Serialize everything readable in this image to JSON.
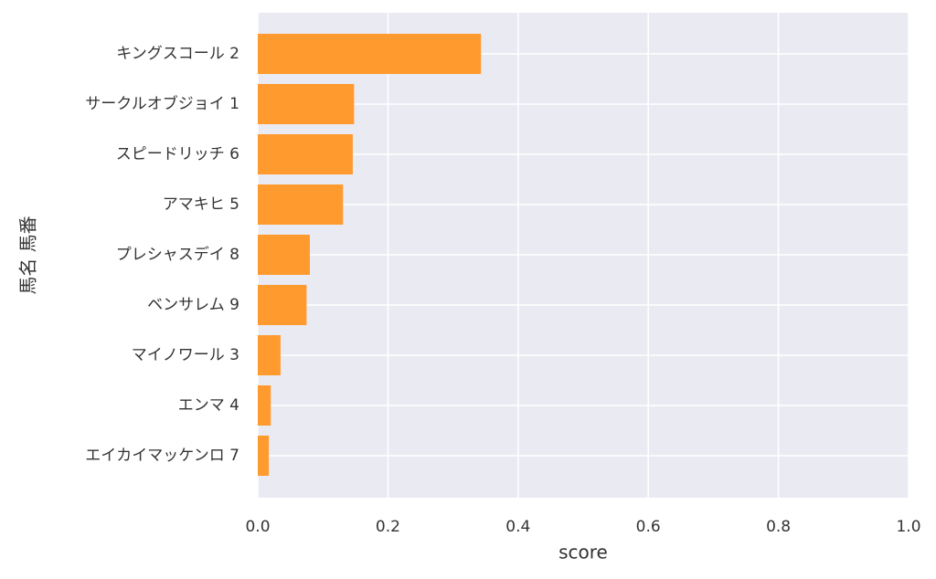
{
  "chart_data": {
    "type": "bar",
    "orientation": "horizontal",
    "xlabel": "score",
    "ylabel": "馬名 馬番",
    "xlim": [
      0,
      1.0
    ],
    "xticks": [
      "0.0",
      "0.2",
      "0.4",
      "0.6",
      "0.8",
      "1.0"
    ],
    "xtick_values": [
      0,
      0.2,
      0.4,
      0.6,
      0.8,
      1.0
    ],
    "grid": true,
    "background": "#eaeaf2",
    "bar_color": "#ff9a2e",
    "categories": [
      "キングスコール 2",
      "サークルオブジョイ 1",
      "スピードリッチ 6",
      "アマキヒ 5",
      "プレシャスデイ 8",
      "ベンサレム 9",
      "マイノワール 3",
      "エンマ 4",
      "エイカイマッケンロ 7"
    ],
    "values": [
      0.343,
      0.148,
      0.146,
      0.131,
      0.08,
      0.075,
      0.035,
      0.02,
      0.017
    ]
  }
}
